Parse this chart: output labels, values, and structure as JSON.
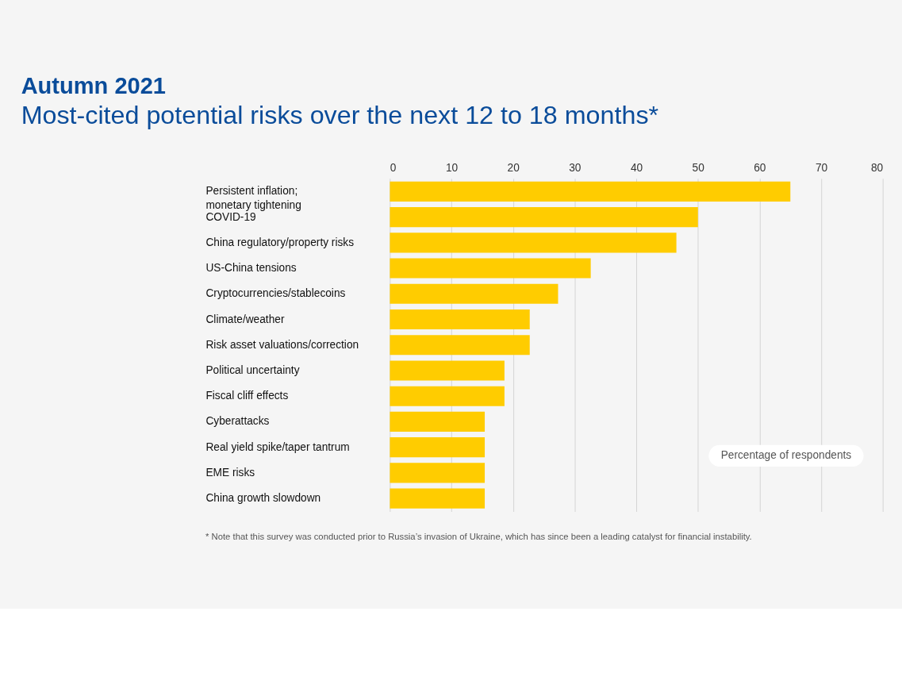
{
  "chart_data": {
    "type": "bar",
    "orientation": "horizontal",
    "title": "Autumn 2021",
    "subtitle": "Most-cited potential risks over the next 12 to 18 months*",
    "categories": [
      "Persistent inflation;\nmonetary tightening",
      "COVID-19",
      "China regulatory/property risks",
      "US-China tensions",
      "Cryptocurrencies/stablecoins",
      "Climate/weather",
      "Risk asset valuations/correction",
      "Political uncertainty",
      "Fiscal cliff effects",
      "Cyberattacks",
      "Real yield spike/taper tantrum",
      "EME risks",
      "China growth slowdown"
    ],
    "values": [
      65,
      50,
      46.5,
      32.6,
      27.3,
      22.7,
      22.7,
      18.6,
      18.6,
      15.4,
      15.4,
      15.4,
      15.4
    ],
    "color": "#ffcc00",
    "xlim": [
      0,
      80
    ],
    "xticks": [
      0,
      10,
      20,
      30,
      40,
      50,
      60,
      70,
      80
    ],
    "grid": "x",
    "annotations": [
      "Percentage of respondents",
      "* Note that this survey was conducted prior to Russia’s invasion of Ukraine, which has since been a leading catalyst for financial instability."
    ]
  }
}
